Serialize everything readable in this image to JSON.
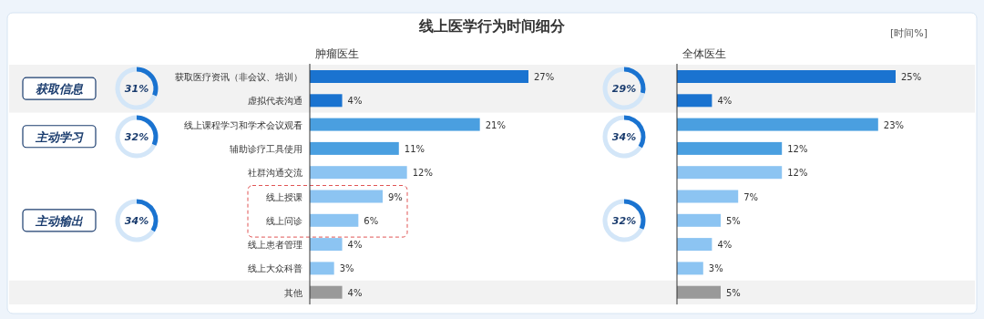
{
  "chart_data": [
    {
      "type": "bar",
      "orientation": "horizontal",
      "title": "线上医学行为时间细分",
      "subtitle": "肿瘤医生",
      "annotations": [
        "[时间%]",
        "获取信息",
        "主动学习",
        "主动输出"
      ],
      "categories": [
        "获取医疗资讯（非会议、培训）",
        "虚拟代表沟通",
        "线上课程学习和学术会议观看",
        "辅助诊疗工具使用",
        "社群沟通交流",
        "线上授课",
        "线上问诊",
        "线上患者管理",
        "线上大众科普",
        "其他"
      ],
      "values": [
        27,
        4,
        21,
        11,
        12,
        9,
        6,
        4,
        3,
        4
      ],
      "value_labels": [
        "27%",
        "4%",
        "21%",
        "11%",
        "12%",
        "9%",
        "6%",
        "4%",
        "3%",
        "4%"
      ],
      "colors": [
        "#1a73d0",
        "#1a73d0",
        "#4a9fe0",
        "#4a9fe0",
        "#8cc4f2",
        "#8cc4f2",
        "#8cc4f2",
        "#8cc4f2",
        "#8cc4f2",
        "#999999"
      ],
      "tick_labels": "y"
    },
    {
      "type": "bar",
      "orientation": "horizontal",
      "subtitle": "全体医生",
      "categories": [
        null,
        null,
        null,
        null,
        null,
        null,
        null,
        null,
        null,
        null
      ],
      "values": [
        25,
        4,
        23,
        12,
        12,
        7,
        5,
        4,
        3,
        5
      ],
      "value_labels": [
        "25%",
        "4%",
        "23%",
        "12%",
        "12%",
        "7%",
        "5%",
        "4%",
        "3%",
        "5%"
      ],
      "colors": [
        "#1a73d0",
        "#1a73d0",
        "#4a9fe0",
        "#4a9fe0",
        "#8cc4f2",
        "#8cc4f2",
        "#8cc4f2",
        "#8cc4f2",
        "#8cc4f2",
        "#999999"
      ],
      "tick_labels": false
    },
    {
      "type": "donut",
      "values": [
        31,
        69
      ],
      "colors": [
        "#1a73d0",
        "#d3e6f8"
      ],
      "annotations": [
        "31%"
      ]
    },
    {
      "type": "donut",
      "values": [
        32,
        68
      ],
      "colors": [
        "#1a73d0",
        "#d3e6f8"
      ],
      "annotations": [
        "32%"
      ]
    },
    {
      "type": "donut",
      "values": [
        34,
        66
      ],
      "colors": [
        "#1a73d0",
        "#d3e6f8"
      ],
      "annotations": [
        "34%"
      ]
    },
    {
      "type": "donut",
      "values": [
        29,
        71
      ],
      "colors": [
        "#1a73d0",
        "#d3e6f8"
      ],
      "annotations": [
        "29%"
      ]
    },
    {
      "type": "donut",
      "values": [
        34,
        66
      ],
      "colors": [
        "#1a73d0",
        "#d3e6f8"
      ],
      "annotations": [
        "34%"
      ]
    },
    {
      "type": "donut",
      "values": [
        32,
        68
      ],
      "colors": [
        "#1a73d0",
        "#d3e6f8"
      ],
      "annotations": [
        "32%"
      ]
    }
  ]
}
